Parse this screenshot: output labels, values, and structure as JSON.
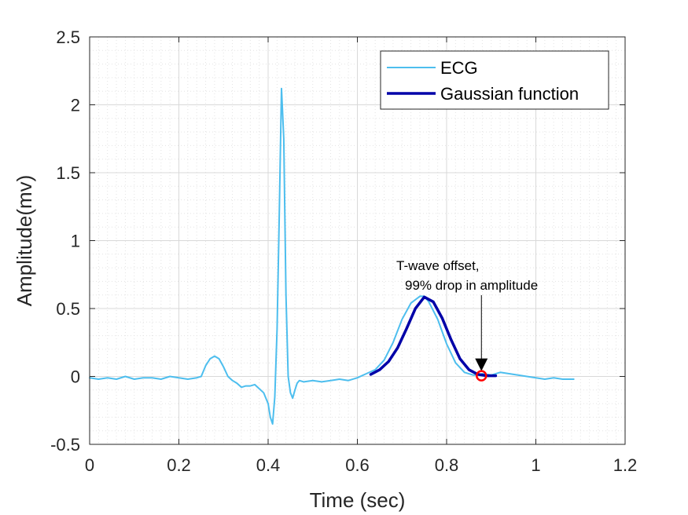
{
  "chart_data": {
    "type": "line",
    "xlabel": "Time (sec)",
    "ylabel": "Amplitude(mv)",
    "xlim": [
      0,
      1.2
    ],
    "ylim": [
      -0.5,
      2.5
    ],
    "xticks": [
      0,
      0.2,
      0.4,
      0.6,
      0.8,
      1,
      1.2
    ],
    "xtick_labels": [
      "0",
      "0.2",
      "0.4",
      "0.6",
      "0.8",
      "1",
      "1.2"
    ],
    "yticks": [
      -0.5,
      0,
      0.5,
      1,
      1.5,
      2,
      2.5
    ],
    "ytick_labels": [
      "-0.5",
      "0",
      "0.5",
      "1",
      "1.5",
      "2",
      "2.5"
    ],
    "grid": true,
    "minor_grid": true,
    "legend_position": "top-right",
    "series": [
      {
        "name": "ECG",
        "color": "#4DBEEE",
        "x": [
          0.0,
          0.02,
          0.04,
          0.06,
          0.08,
          0.1,
          0.12,
          0.14,
          0.16,
          0.18,
          0.2,
          0.22,
          0.24,
          0.25,
          0.26,
          0.27,
          0.28,
          0.29,
          0.3,
          0.31,
          0.32,
          0.33,
          0.34,
          0.35,
          0.36,
          0.37,
          0.38,
          0.39,
          0.4,
          0.405,
          0.41,
          0.415,
          0.42,
          0.425,
          0.43,
          0.435,
          0.44,
          0.445,
          0.45,
          0.455,
          0.46,
          0.465,
          0.47,
          0.48,
          0.5,
          0.52,
          0.54,
          0.56,
          0.58,
          0.6,
          0.62,
          0.64,
          0.66,
          0.68,
          0.7,
          0.72,
          0.74,
          0.75,
          0.76,
          0.78,
          0.8,
          0.82,
          0.84,
          0.86,
          0.87,
          0.88,
          0.9,
          0.92,
          0.94,
          0.96,
          0.98,
          1.0,
          1.02,
          1.04,
          1.06,
          1.085
        ],
        "y": [
          -0.01,
          -0.02,
          -0.01,
          -0.02,
          0.0,
          -0.02,
          -0.01,
          -0.01,
          -0.02,
          0.0,
          -0.01,
          -0.02,
          -0.01,
          0.0,
          0.08,
          0.13,
          0.15,
          0.13,
          0.07,
          0.0,
          -0.03,
          -0.05,
          -0.08,
          -0.07,
          -0.07,
          -0.06,
          -0.09,
          -0.12,
          -0.2,
          -0.3,
          -0.35,
          -0.15,
          0.35,
          1.2,
          2.12,
          1.75,
          0.6,
          0.0,
          -0.12,
          -0.16,
          -0.1,
          -0.05,
          -0.03,
          -0.04,
          -0.03,
          -0.04,
          -0.03,
          -0.02,
          -0.03,
          -0.01,
          0.02,
          0.05,
          0.12,
          0.25,
          0.42,
          0.54,
          0.59,
          0.59,
          0.55,
          0.42,
          0.24,
          0.1,
          0.03,
          0.01,
          0.01,
          0.02,
          0.01,
          0.03,
          0.02,
          0.01,
          0.0,
          -0.01,
          -0.02,
          -0.01,
          -0.02,
          -0.02
        ]
      },
      {
        "name": "Gaussian function",
        "color": "#0000A8",
        "x": [
          0.63,
          0.65,
          0.67,
          0.69,
          0.71,
          0.73,
          0.75,
          0.77,
          0.79,
          0.81,
          0.83,
          0.85,
          0.87,
          0.89,
          0.91
        ],
        "y": [
          0.015,
          0.05,
          0.11,
          0.21,
          0.35,
          0.5,
          0.585,
          0.55,
          0.43,
          0.27,
          0.13,
          0.05,
          0.015,
          0.005,
          0.005
        ]
      }
    ],
    "annotation": {
      "line1": "T-wave offset,",
      "line2": "99% drop in amplitude",
      "marker_x": 0.878,
      "marker_y": 0.005,
      "marker_color": "#FF0000"
    }
  }
}
